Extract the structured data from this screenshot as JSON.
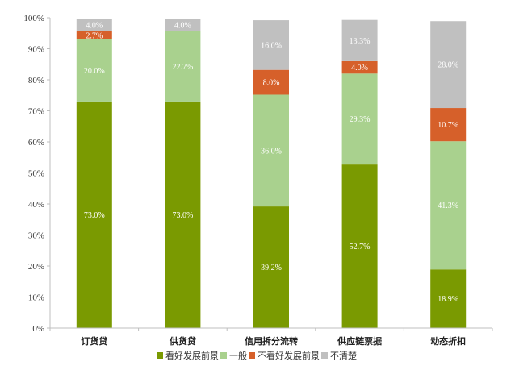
{
  "chart_data": {
    "type": "bar",
    "stacked": true,
    "title": "",
    "xlabel": "",
    "ylabel": "",
    "ylim": [
      0,
      100
    ],
    "yticks": [
      0,
      10,
      20,
      30,
      40,
      50,
      60,
      70,
      80,
      90,
      100
    ],
    "ytick_suffix": "%",
    "grid": false,
    "legend_position": "bottom",
    "categories": [
      "订货贷",
      "供货贷",
      "信用拆分流转",
      "供应链票据",
      "动态折扣"
    ],
    "series": [
      {
        "name": "看好发展前景",
        "color": "#7a9a01",
        "values": [
          73.0,
          73.0,
          39.2,
          52.7,
          18.9
        ],
        "labels": [
          "73.0%",
          "73.0%",
          "39.2%",
          "52.7%",
          "18.9%"
        ]
      },
      {
        "name": "一般",
        "color": "#a9d18e",
        "values": [
          20.0,
          22.7,
          36.0,
          29.3,
          41.3
        ],
        "labels": [
          "20.0%",
          "22.7%",
          "36.0%",
          "29.3%",
          "41.3%"
        ]
      },
      {
        "name": "不看好发展前景",
        "color": "#d6602a",
        "values": [
          2.7,
          0.0,
          8.0,
          4.0,
          10.7
        ],
        "labels": [
          "2.7%",
          "",
          "8.0%",
          "4.0%",
          "10.7%"
        ]
      },
      {
        "name": "不清楚",
        "color": "#c0c0c0",
        "values": [
          4.0,
          4.0,
          16.0,
          13.3,
          28.0
        ],
        "labels": [
          "4.0%",
          "4.0%",
          "16.0%",
          "13.3%",
          "28.0%"
        ]
      }
    ]
  }
}
